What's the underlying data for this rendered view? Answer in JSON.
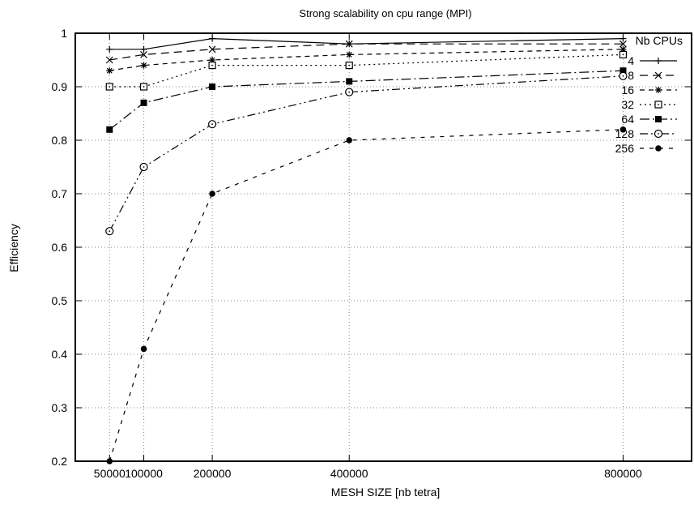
{
  "chart_data": {
    "type": "line",
    "title": "Strong scalability on cpu range (MPI)",
    "xlabel": "MESH SIZE [nb tetra]",
    "ylabel": "Efficiency",
    "xlim": [
      0,
      900000
    ],
    "ylim": [
      0.2,
      1.0
    ],
    "xticks": [
      50000,
      100000,
      200000,
      400000,
      800000
    ],
    "xtick_labels": [
      "50000",
      "100000",
      "200000",
      "400000",
      "800000"
    ],
    "yticks": [
      0.2,
      0.3,
      0.4,
      0.5,
      0.6,
      0.7,
      0.8,
      0.9,
      1.0
    ],
    "ytick_labels": [
      "0.2",
      "0.3",
      "0.4",
      "0.5",
      "0.6",
      "0.7",
      "0.8",
      "0.9",
      "1"
    ],
    "grid": true,
    "legend_title": "Nb CPUs",
    "legend_position": "top-right",
    "x": [
      50000,
      100000,
      200000,
      400000,
      800000
    ],
    "series": [
      {
        "name": "4",
        "values": [
          0.97,
          0.97,
          0.99,
          0.98,
          0.99
        ],
        "marker": "plus",
        "dash": "solid"
      },
      {
        "name": "8",
        "values": [
          0.95,
          0.96,
          0.97,
          0.98,
          0.98
        ],
        "marker": "cross",
        "dash": "long"
      },
      {
        "name": "16",
        "values": [
          0.93,
          0.94,
          0.95,
          0.96,
          0.97
        ],
        "marker": "star",
        "dash": "medium"
      },
      {
        "name": "32",
        "values": [
          0.9,
          0.9,
          0.94,
          0.94,
          0.96
        ],
        "marker": "open-square",
        "dash": "dotted"
      },
      {
        "name": "64",
        "values": [
          0.82,
          0.87,
          0.9,
          0.91,
          0.93
        ],
        "marker": "filled-square",
        "dash": "dash-dot"
      },
      {
        "name": "128",
        "values": [
          0.63,
          0.75,
          0.83,
          0.89,
          0.92
        ],
        "marker": "open-circle",
        "dash": "dash-dot-dot"
      },
      {
        "name": "256",
        "values": [
          0.2,
          0.41,
          0.7,
          0.8,
          0.82
        ],
        "marker": "filled-circle",
        "dash": "short"
      }
    ]
  }
}
